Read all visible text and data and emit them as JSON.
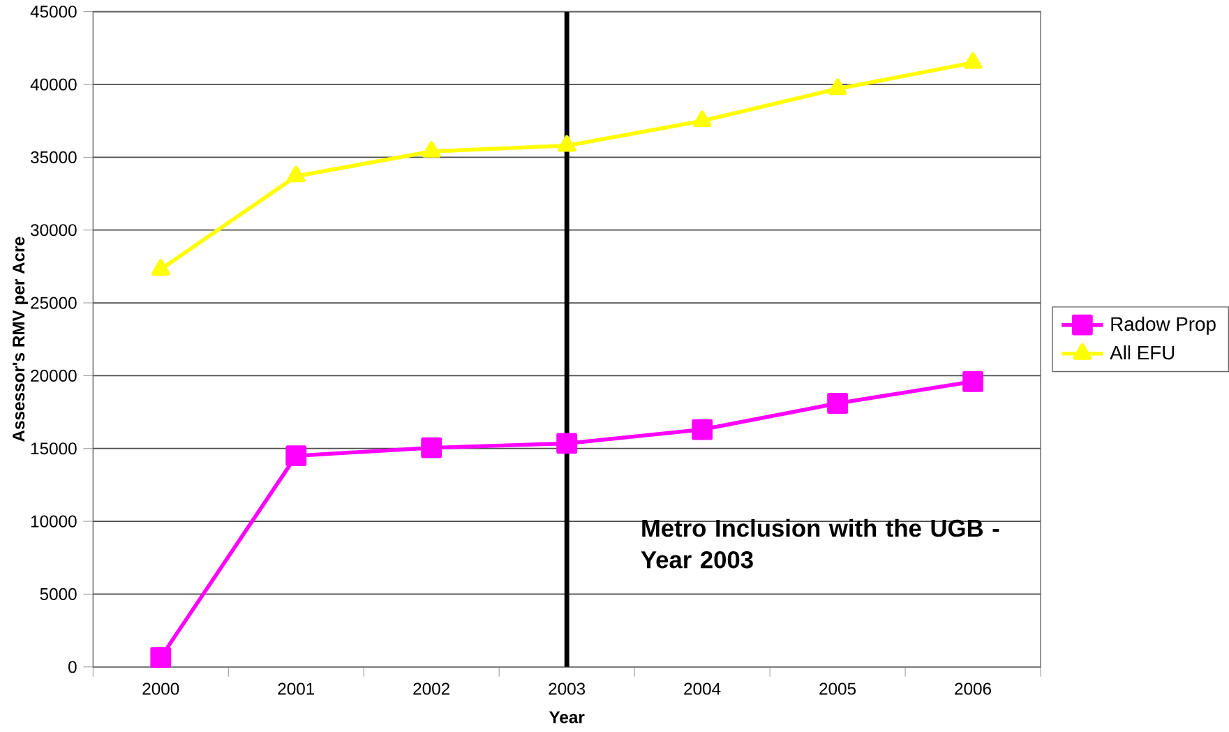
{
  "chart_data": {
    "type": "line",
    "xlabel": "Year",
    "ylabel": "Assessor's RMV per Acre",
    "categories": [
      "2000",
      "2001",
      "2002",
      "2003",
      "2004",
      "2005",
      "2006"
    ],
    "series": [
      {
        "name": "Radow Prop",
        "color": "#ff00ff",
        "marker": "square",
        "values": [
          650,
          14500,
          15050,
          15350,
          16300,
          18100,
          19600
        ]
      },
      {
        "name": "All EFU",
        "color": "#ffff00",
        "marker": "triangle",
        "values": [
          27300,
          33700,
          35400,
          35800,
          37500,
          39700,
          41500
        ]
      }
    ],
    "ylim": [
      0,
      45000
    ],
    "yticks": [
      0,
      5000,
      10000,
      15000,
      20000,
      25000,
      30000,
      35000,
      40000,
      45000
    ],
    "grid": "y",
    "legend": "right",
    "ref_lines": [
      {
        "axis": "x",
        "value": "2003",
        "color": "#000000"
      }
    ],
    "annotations": [
      "Metro Inclusion with the UGB - Year 2003"
    ]
  }
}
